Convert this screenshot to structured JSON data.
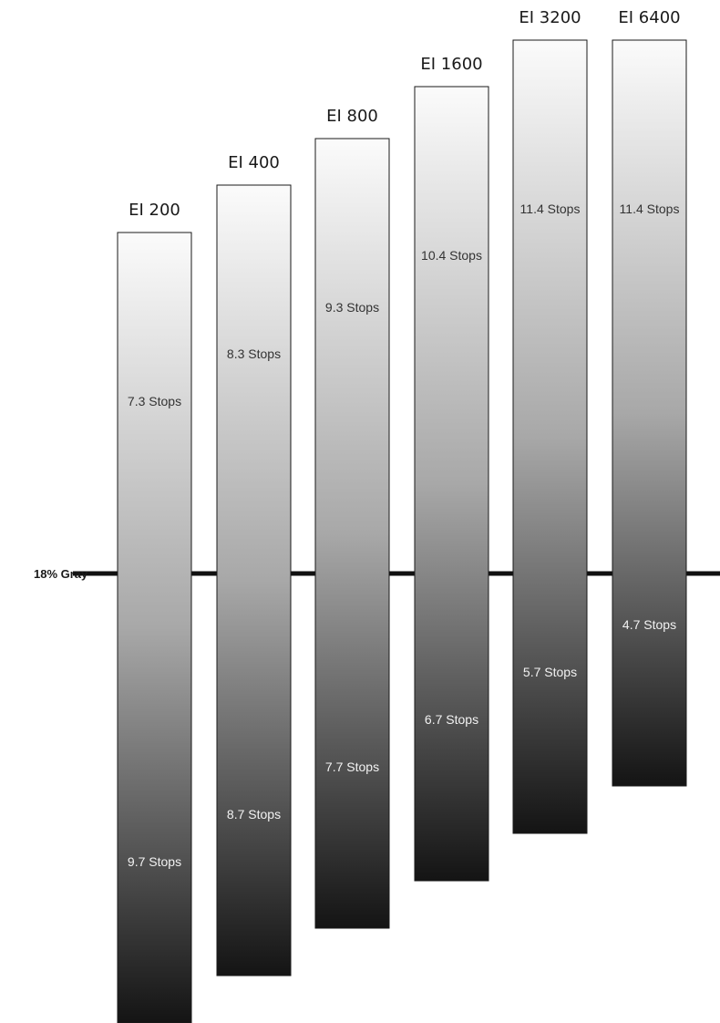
{
  "chart_data": {
    "type": "bar",
    "reference": {
      "label": "18% Gray",
      "value": 0
    },
    "categories": [
      "EI 200",
      "EI 400",
      "EI 800",
      "EI 1600",
      "EI 3200",
      "EI 6400"
    ],
    "series": [
      {
        "values": [
          7.3,
          8.3,
          9.3,
          10.4,
          11.4,
          11.4
        ],
        "labels": [
          "7.3 Stops",
          "8.3 Stops",
          "9.3 Stops",
          "10.4 Stops",
          "11.4 Stops",
          "11.4 Stops"
        ]
      },
      {
        "values": [
          9.7,
          8.7,
          7.7,
          6.7,
          5.7,
          4.7
        ],
        "labels": [
          "9.7 Stops",
          "8.7 Stops",
          "7.7 Stops",
          "6.7 Stops",
          "5.7 Stops",
          "4.7 Stops"
        ]
      }
    ],
    "colors": {
      "top": "#fbfbfb",
      "middle": "#a8a8a8",
      "bottom": "#141414",
      "line": "#111111"
    }
  }
}
